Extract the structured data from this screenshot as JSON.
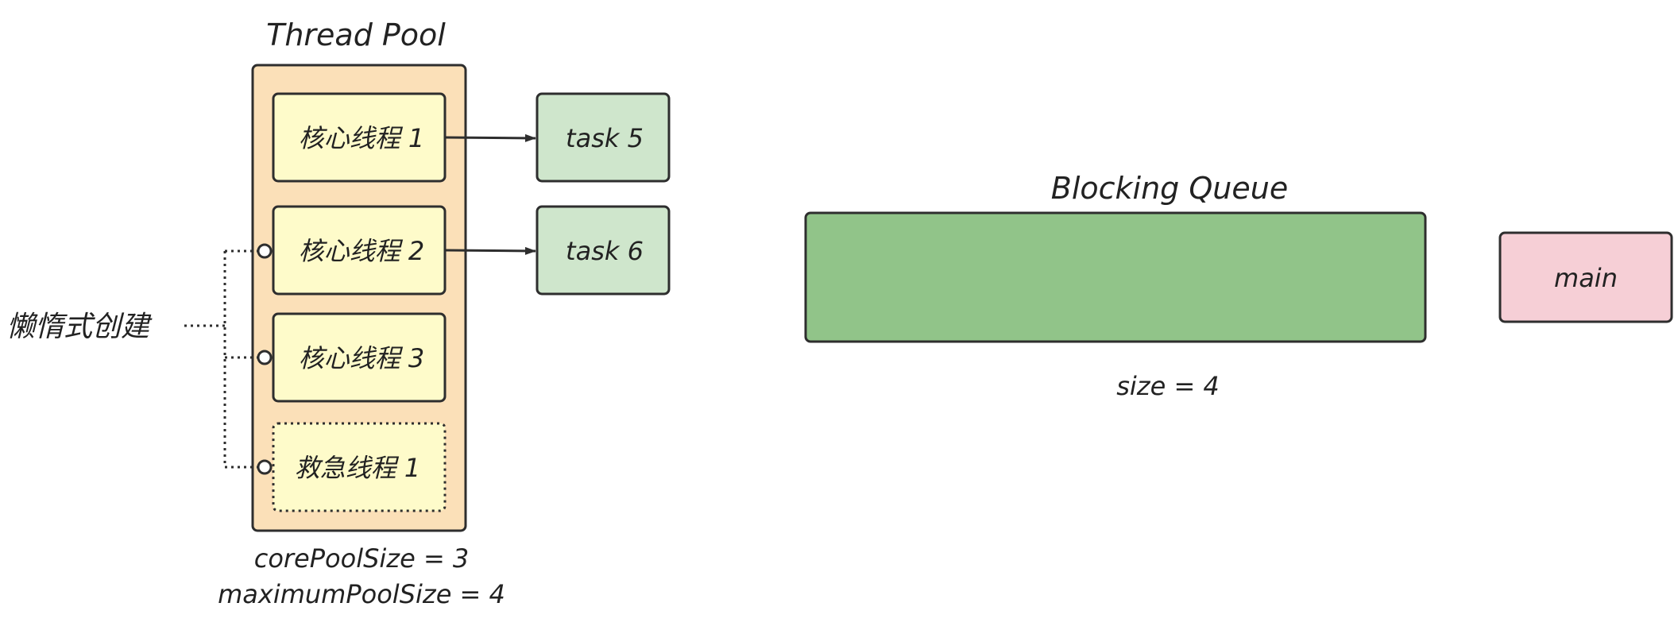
{
  "thread_pool": {
    "title": "Thread Pool",
    "threads": [
      {
        "label": "核心线程 1",
        "kind": "core",
        "lazy": false
      },
      {
        "label": "核心线程 2",
        "kind": "core",
        "lazy": true
      },
      {
        "label": "核心线程 3",
        "kind": "core",
        "lazy": true
      },
      {
        "label": "救急线程 1",
        "kind": "emergency",
        "lazy": true
      }
    ],
    "params": {
      "core": "corePoolSize = 3",
      "max": "maximumPoolSize = 4"
    }
  },
  "tasks": [
    {
      "label": "task 5",
      "thread_index": 0
    },
    {
      "label": "task 6",
      "thread_index": 1
    }
  ],
  "lazy_label": "懒惰式创建",
  "queue": {
    "title": "Blocking Queue",
    "size_label": "size = 4"
  },
  "main": {
    "label": "main"
  },
  "colors": {
    "pool_fill": "#fbe0b8",
    "thread_fill": "#fefbca",
    "task_fill": "#cfe6cc",
    "queue_fill": "#91c489",
    "main_fill": "#f6cfd6",
    "stroke": "#2e2e2e"
  }
}
